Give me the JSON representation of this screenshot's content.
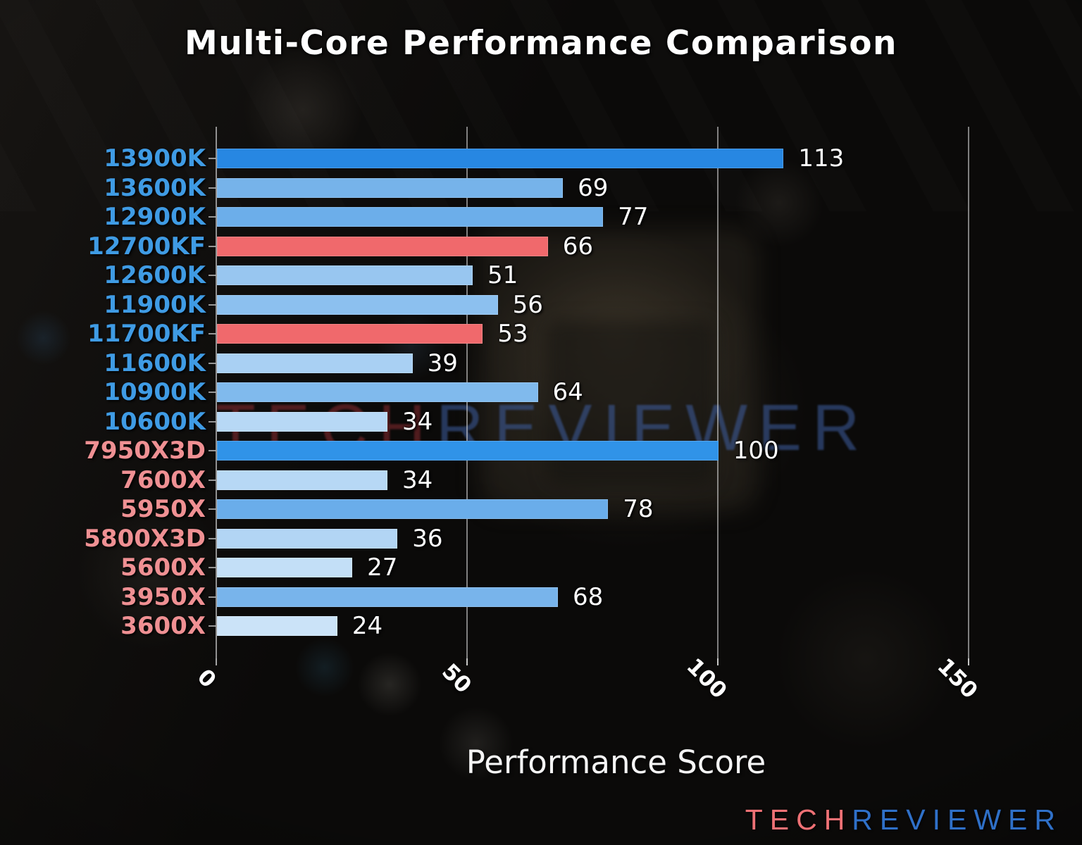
{
  "title": "Multi-Core Performance Comparison",
  "xlabel": "Performance Score",
  "watermark": {
    "part1": "TECH",
    "part2": "REVIEWER"
  },
  "logo": {
    "part1": "TECH",
    "part2": "REVIEWER"
  },
  "colors": {
    "intel_label": "#3f9be4",
    "amd_label": "#ef9093",
    "highlight_bar": "#f0696c",
    "watermark_tech": "rgba(150,46,52,0.50)",
    "watermark_reviewer": "rgba(62,95,162,0.55)",
    "logo_tech": "#ee7175",
    "logo_reviewer": "#2f70c8",
    "gridline": "rgba(225,225,225,0.55)",
    "value_text": "#ffffff"
  },
  "chart_data": {
    "type": "bar",
    "orientation": "horizontal",
    "title": "Multi-Core Performance Comparison",
    "xlabel": "Performance Score",
    "xlim": [
      0,
      159
    ],
    "xticks": [
      0,
      50,
      100,
      150
    ],
    "grid": true,
    "legend": "none",
    "categories": [
      "13900K",
      "13600K",
      "12900K",
      "12700KF",
      "12600K",
      "11900K",
      "11700KF",
      "11600K",
      "10900K",
      "10600K",
      "7950X3D",
      "7600X",
      "5950X",
      "5800X3D",
      "5600X",
      "3950X",
      "3600X"
    ],
    "values": [
      113,
      69,
      77,
      66,
      51,
      56,
      53,
      39,
      64,
      34,
      100,
      34,
      78,
      36,
      27,
      68,
      24
    ],
    "bar_colors": [
      "#2787e2",
      "#76b3ea",
      "#6caeea",
      "#f0696c",
      "#98c6f0",
      "#8cc0ef",
      "#f0696c",
      "#a9d0f3",
      "#80baed",
      "#b7d8f5",
      "#3093e8",
      "#b7d8f5",
      "#6aadea",
      "#b2d5f4",
      "#c3dff7",
      "#78b4eb",
      "#cbe3f8"
    ],
    "category_vendors": [
      "intel",
      "intel",
      "intel",
      "intel",
      "intel",
      "intel",
      "intel",
      "intel",
      "intel",
      "intel",
      "amd",
      "amd",
      "amd",
      "amd",
      "amd",
      "amd",
      "amd"
    ]
  }
}
